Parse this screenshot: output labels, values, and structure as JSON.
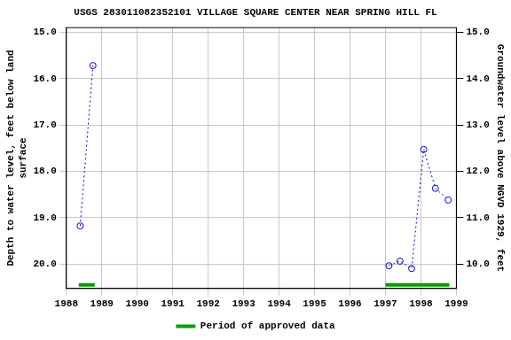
{
  "chart_data": {
    "type": "line",
    "title": "USGS 283011082352101 VILLAGE SQUARE CENTER NEAR SPRING HILL FL",
    "y_label": [
      "Depth to water level, feet below land",
      "surface"
    ],
    "y2_label": "Groundwater level above NGVD 1929, feet",
    "x": [
      1988.39,
      1988.75,
      null,
      1997.1,
      1997.41,
      1997.74,
      1998.08,
      1998.41,
      1998.77
    ],
    "series": [
      {
        "color": "#0000cc",
        "marker": "circle",
        "line_style": "dotted",
        "values": [
          19.18,
          15.72,
          null,
          20.04,
          19.94,
          20.1,
          17.53,
          18.37,
          18.62
        ]
      }
    ],
    "approved_periods": {
      "name": "Period of approved data",
      "color": "#00a000",
      "ranges": [
        [
          1988.35,
          1988.8
        ],
        [
          1997.0,
          1998.8
        ]
      ]
    },
    "xlim": [
      1988,
      1999
    ],
    "xticks": [
      1988,
      1989,
      1990,
      1991,
      1992,
      1993,
      1994,
      1995,
      1996,
      1997,
      1998,
      1999
    ],
    "ylim": [
      20.53,
      14.9
    ],
    "yticks": [
      {
        "value": 15,
        "label": "15.0"
      },
      {
        "value": 16,
        "label": "16.0"
      },
      {
        "value": 17,
        "label": "17.0"
      },
      {
        "value": 18,
        "label": "18.0"
      },
      {
        "value": 19,
        "label": "19.0"
      },
      {
        "value": 20,
        "label": "20.0"
      }
    ],
    "y2lim": [
      9.47,
      15.1
    ],
    "y2ticks": [
      {
        "value": 10,
        "label": "10.0"
      },
      {
        "value": 11,
        "label": "11.0"
      },
      {
        "value": 12,
        "label": "12.0"
      },
      {
        "value": 13,
        "label": "13.0"
      },
      {
        "value": 14,
        "label": "14.0"
      },
      {
        "value": 15,
        "label": "15.0"
      }
    ],
    "grid": true,
    "legend": "bottom"
  }
}
